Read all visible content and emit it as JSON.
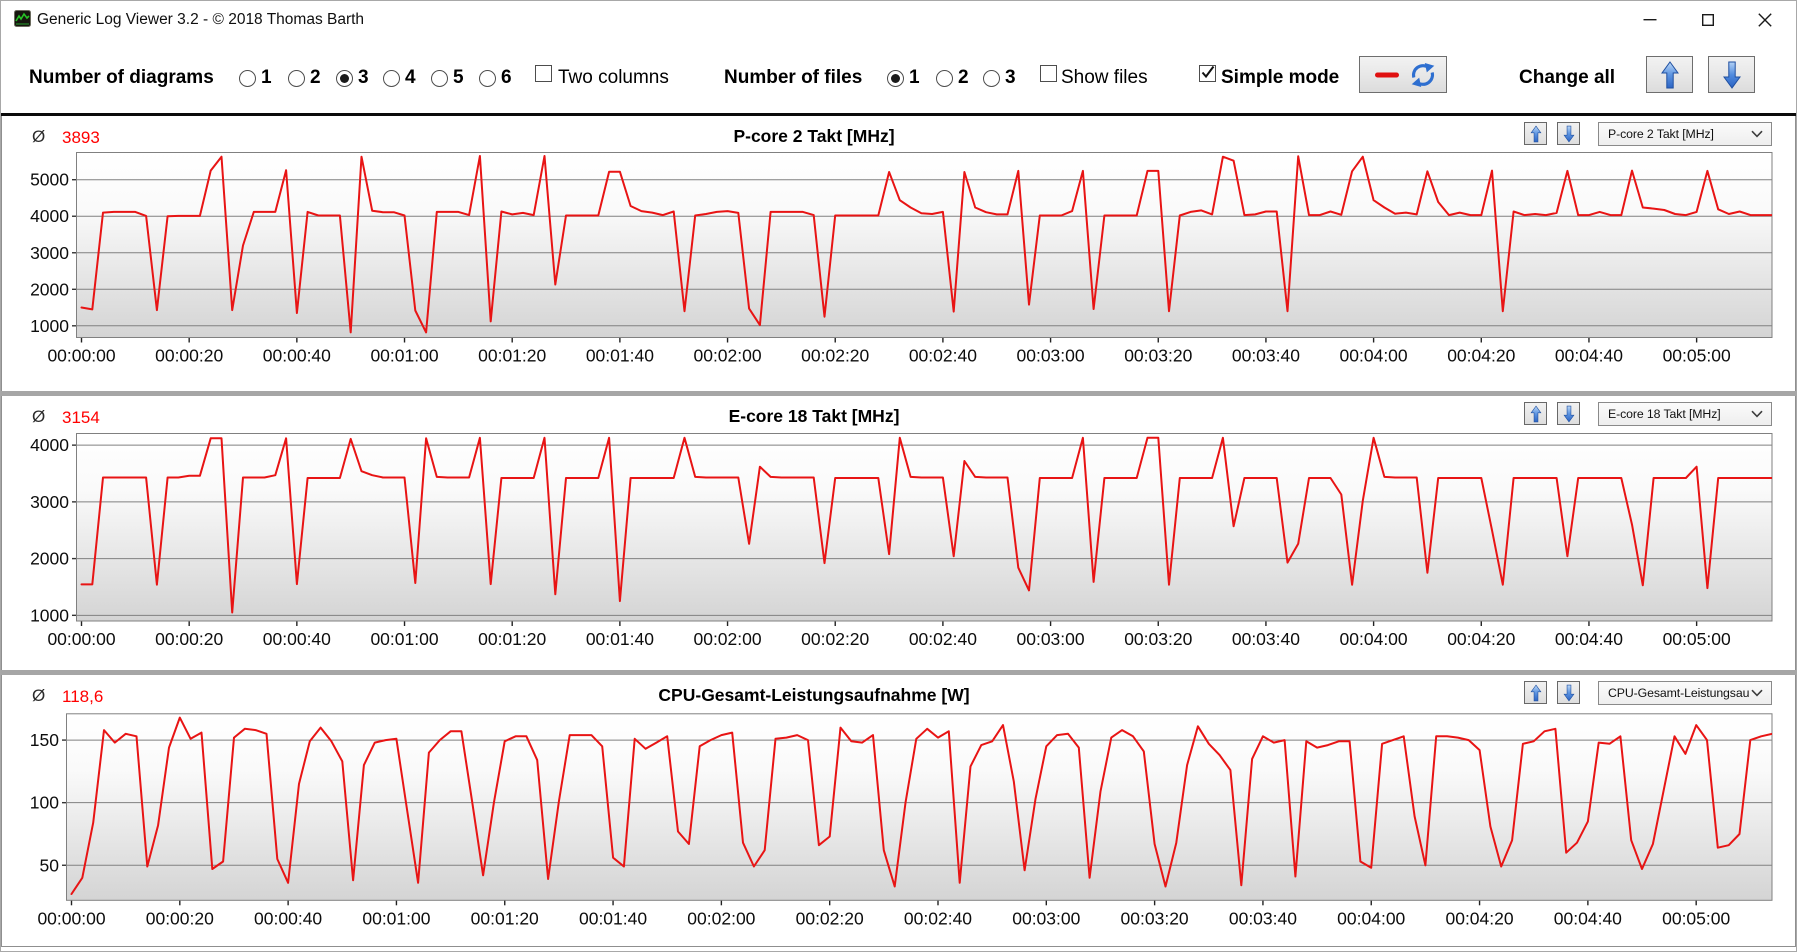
{
  "window": {
    "title": "Generic Log Viewer 3.2 - © 2018 Thomas Barth",
    "controls": {
      "minimize": "minimize",
      "maximize": "maximize",
      "close": "close"
    }
  },
  "toolbar": {
    "diagrams_label": "Number of diagrams",
    "diagram_options": [
      "1",
      "2",
      "3",
      "4",
      "5",
      "6"
    ],
    "diagrams_selected": "3",
    "two_columns_label": "Two columns",
    "two_columns_checked": false,
    "files_label": "Number of files",
    "file_options": [
      "1",
      "2",
      "3"
    ],
    "files_selected": "1",
    "show_files_label": "Show files",
    "show_files_checked": false,
    "simple_mode_label": "Simple mode",
    "simple_mode_checked": true,
    "change_all_label": "Change all"
  },
  "colors": {
    "series_red": "#e81414",
    "average_red": "#ff0000",
    "arrow_blue": "#3a76d0",
    "gridline": "#808080",
    "separator_black": "#0a0a0a",
    "panel_separator": "#a6a6a6"
  },
  "chart_data": [
    {
      "type": "line",
      "title": "P-core 2 Takt [MHz]",
      "average_label": "Ø",
      "average": "3893",
      "selector_value": "P-core 2 Takt [MHz]",
      "y_tick_labels": [
        "1000",
        "2000",
        "3000",
        "4000",
        "5000"
      ],
      "y_ticks": [
        1000,
        2000,
        3000,
        4000,
        5000
      ],
      "y_range": [
        680,
        5745
      ],
      "x_labels": [
        "00:00:00",
        "00:00:20",
        "00:00:40",
        "00:01:00",
        "00:01:20",
        "00:01:40",
        "00:02:00",
        "00:02:20",
        "00:02:40",
        "00:03:00",
        "00:03:20",
        "00:03:40",
        "00:04:00",
        "00:04:20",
        "00:04:40",
        "00:05:00"
      ],
      "x_tick_seconds": [
        0,
        20,
        40,
        60,
        80,
        100,
        120,
        140,
        160,
        180,
        200,
        220,
        240,
        260,
        280,
        300
      ],
      "x_range_seconds": [
        0,
        314
      ],
      "t_step_seconds": 2,
      "values": [
        1500,
        1450,
        4100,
        4120,
        4120,
        4120,
        4010,
        1430,
        4000,
        4010,
        4010,
        4010,
        5250,
        5630,
        1430,
        3200,
        4120,
        4120,
        4120,
        5260,
        1350,
        4120,
        4020,
        4020,
        4020,
        820,
        5630,
        4150,
        4110,
        4110,
        4020,
        1420,
        820,
        4120,
        4120,
        4120,
        4030,
        5650,
        1120,
        4130,
        4050,
        4090,
        4030,
        5650,
        2130,
        4020,
        4020,
        4020,
        4020,
        5220,
        5220,
        4280,
        4140,
        4100,
        4030,
        4130,
        1400,
        4020,
        4060,
        4120,
        4140,
        4090,
        1470,
        1020,
        4120,
        4120,
        4120,
        4120,
        4030,
        1250,
        4020,
        4020,
        4020,
        4020,
        4020,
        5210,
        4440,
        4240,
        4080,
        4060,
        4120,
        1390,
        5210,
        4240,
        4110,
        4050,
        4050,
        5240,
        1580,
        4020,
        4020,
        4020,
        4140,
        5240,
        1460,
        4020,
        4020,
        4020,
        4020,
        5240,
        5240,
        1400,
        4020,
        4120,
        4160,
        4050,
        5630,
        5520,
        4030,
        4050,
        4130,
        4130,
        1400,
        5640,
        4030,
        4030,
        4130,
        4040,
        5230,
        5630,
        4440,
        4240,
        4070,
        4100,
        4050,
        5230,
        4390,
        4030,
        4100,
        4030,
        4030,
        5250,
        1400,
        4130,
        4030,
        4060,
        4030,
        4090,
        5240,
        4030,
        4030,
        4120,
        4030,
        4030,
        5250,
        4240,
        4210,
        4170,
        4060,
        4030,
        4120,
        5240,
        4190,
        4060,
        4130,
        4030,
        4030,
        4030
      ]
    },
    {
      "type": "line",
      "title": "E-core 18 Takt [MHz]",
      "average_label": "Ø",
      "average": "3154",
      "selector_value": "E-core 18 Takt [MHz]",
      "y_tick_labels": [
        "1000",
        "2000",
        "3000",
        "4000"
      ],
      "y_ticks": [
        1000,
        2000,
        3000,
        4000
      ],
      "y_range": [
        900,
        4205
      ],
      "x_labels": [
        "00:00:00",
        "00:00:20",
        "00:00:40",
        "00:01:00",
        "00:01:20",
        "00:01:40",
        "00:02:00",
        "00:02:20",
        "00:02:40",
        "00:03:00",
        "00:03:20",
        "00:03:40",
        "00:04:00",
        "00:04:20",
        "00:04:40",
        "00:05:00"
      ],
      "x_tick_seconds": [
        0,
        20,
        40,
        60,
        80,
        100,
        120,
        140,
        160,
        180,
        200,
        220,
        240,
        260,
        280,
        300
      ],
      "x_range_seconds": [
        0,
        314
      ],
      "t_step_seconds": 2,
      "values": [
        1545,
        1545,
        3430,
        3430,
        3430,
        3430,
        3430,
        1540,
        3430,
        3430,
        3460,
        3460,
        4120,
        4120,
        1050,
        3430,
        3430,
        3430,
        3470,
        4120,
        1550,
        3420,
        3420,
        3420,
        3420,
        4110,
        3540,
        3470,
        3430,
        3430,
        3430,
        1570,
        4120,
        3440,
        3430,
        3430,
        3430,
        4130,
        1550,
        3420,
        3420,
        3420,
        3420,
        4130,
        1370,
        3420,
        3420,
        3420,
        3420,
        4130,
        1250,
        3420,
        3420,
        3420,
        3420,
        3420,
        4130,
        3440,
        3430,
        3430,
        3430,
        3430,
        2260,
        3620,
        3440,
        3430,
        3430,
        3430,
        3430,
        1920,
        3420,
        3420,
        3420,
        3420,
        3420,
        2080,
        4130,
        3440,
        3430,
        3430,
        3430,
        2040,
        3720,
        3440,
        3430,
        3430,
        3430,
        1840,
        1440,
        3420,
        3420,
        3420,
        3420,
        4130,
        1590,
        3420,
        3420,
        3420,
        3420,
        4130,
        4130,
        1540,
        3420,
        3420,
        3420,
        3420,
        4130,
        2570,
        3420,
        3420,
        3420,
        3420,
        1930,
        2260,
        3420,
        3420,
        3420,
        3130,
        1540,
        3020,
        4130,
        3440,
        3430,
        3430,
        3430,
        1750,
        3420,
        3420,
        3420,
        3420,
        3420,
        2500,
        1540,
        3420,
        3420,
        3420,
        3420,
        3420,
        2040,
        3420,
        3420,
        3420,
        3420,
        3420,
        2600,
        1530,
        3420,
        3420,
        3420,
        3420,
        3620,
        1480,
        3420,
        3420,
        3420,
        3420,
        3420,
        3420
      ]
    },
    {
      "type": "line",
      "title": "CPU-Gesamt-Leistungsaufnahme [W]",
      "average_label": "Ø",
      "average": "118,6",
      "selector_value": "CPU-Gesamt-Leistungsau",
      "y_tick_labels": [
        "50",
        "100",
        "150"
      ],
      "y_ticks": [
        50,
        100,
        150
      ],
      "y_range": [
        22,
        171
      ],
      "x_labels": [
        "00:00:00",
        "00:00:20",
        "00:00:40",
        "00:01:00",
        "00:01:20",
        "00:01:40",
        "00:02:00",
        "00:02:20",
        "00:02:40",
        "00:03:00",
        "00:03:20",
        "00:03:40",
        "00:04:00",
        "00:04:20",
        "00:04:40",
        "00:05:00"
      ],
      "x_tick_seconds": [
        0,
        20,
        40,
        60,
        80,
        100,
        120,
        140,
        160,
        180,
        200,
        220,
        240,
        260,
        280,
        300
      ],
      "x_range_seconds": [
        0,
        314
      ],
      "t_step_seconds": 2,
      "values": [
        27,
        40,
        84,
        158,
        148,
        155,
        153,
        49,
        82,
        144,
        168,
        151,
        156,
        47,
        53,
        152,
        159,
        158,
        155,
        55,
        36,
        115,
        149,
        160,
        149,
        133,
        38,
        130,
        148,
        150,
        151,
        93,
        36,
        140,
        150,
        157,
        157,
        100,
        42,
        100,
        149,
        153,
        153,
        134,
        39,
        101,
        154,
        154,
        154,
        145,
        56,
        49,
        151,
        143,
        148,
        153,
        77,
        67,
        145,
        150,
        154,
        156,
        68,
        49,
        62,
        151,
        152,
        154,
        150,
        66,
        73,
        160,
        149,
        148,
        154,
        62,
        33,
        100,
        151,
        159,
        152,
        157,
        36,
        129,
        146,
        149,
        162,
        117,
        46,
        103,
        145,
        154,
        155,
        144,
        40,
        109,
        152,
        158,
        153,
        141,
        67,
        33,
        68,
        130,
        161,
        147,
        138,
        126,
        34,
        135,
        153,
        148,
        150,
        41,
        149,
        144,
        146,
        149,
        149,
        53,
        48,
        147,
        150,
        153,
        89,
        50,
        153,
        153,
        152,
        150,
        142,
        81,
        49,
        70,
        147,
        149,
        157,
        159,
        60,
        68,
        85,
        148,
        147,
        153,
        70,
        47,
        67,
        110,
        153,
        139,
        162,
        150,
        64,
        66,
        75,
        150,
        153,
        155
      ]
    }
  ]
}
